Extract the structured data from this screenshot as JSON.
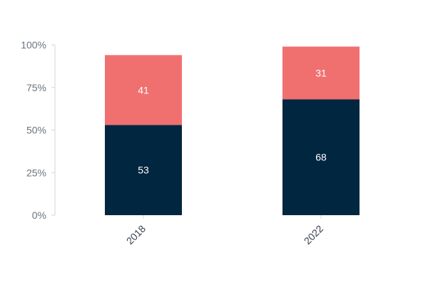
{
  "chart_data": {
    "type": "bar",
    "stacked": true,
    "categories": [
      "2018",
      "2022"
    ],
    "series": [
      {
        "values": [
          53,
          68
        ],
        "color": "#012640"
      },
      {
        "values": [
          41,
          31
        ],
        "color": "#f07070"
      }
    ],
    "ylim": [
      0,
      100
    ],
    "yticks": [
      {
        "value": 0,
        "label": "0%"
      },
      {
        "value": 25,
        "label": "25%"
      },
      {
        "value": 50,
        "label": "50%"
      },
      {
        "value": 75,
        "label": "75%"
      },
      {
        "value": 100,
        "label": "100%"
      }
    ],
    "grid": false,
    "legend": "none",
    "title": "",
    "xlabel": "",
    "ylabel": ""
  }
}
